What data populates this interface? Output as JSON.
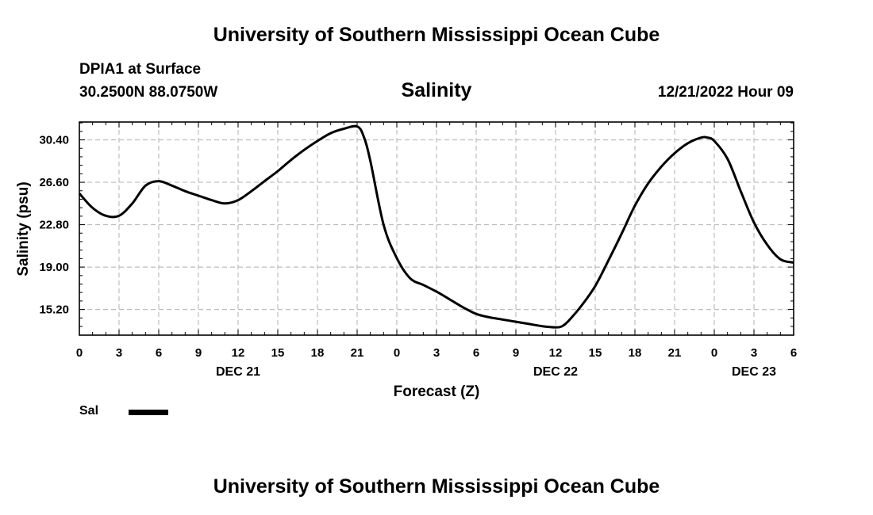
{
  "header": {
    "title": "University of Southern Mississippi Ocean Cube",
    "station": "DPIA1 at Surface",
    "coordinates": "30.2500N  88.0750W",
    "parameter": "Salinity",
    "timestamp": "12/21/2022 Hour 09"
  },
  "footer": {
    "title": "University of Southern Mississippi Ocean Cube"
  },
  "legend": {
    "series_label": "Sal",
    "color": "#000000"
  },
  "chart_data": {
    "type": "line",
    "title": "Salinity",
    "xlabel": "Forecast (Z)",
    "ylabel": "Salinity (psu)",
    "xlim": [
      0,
      54
    ],
    "ylim": [
      12.9,
      32.0
    ],
    "x_units": "hours since DEC 21 00Z",
    "x_ticks": [
      0,
      3,
      6,
      9,
      12,
      15,
      18,
      21,
      24,
      27,
      30,
      33,
      36,
      39,
      42,
      45,
      48,
      51,
      54
    ],
    "x_tick_labels": [
      "0",
      "3",
      "6",
      "9",
      "12",
      "15",
      "18",
      "21",
      "0",
      "3",
      "6",
      "9",
      "12",
      "15",
      "18",
      "21",
      "0",
      "3",
      "6"
    ],
    "date_labels": [
      {
        "x": 12,
        "label": "DEC 21"
      },
      {
        "x": 36,
        "label": "DEC 22"
      },
      {
        "x": 51,
        "label": "DEC 23"
      }
    ],
    "y_ticks": [
      15.2,
      19.0,
      22.8,
      26.6,
      30.4
    ],
    "y_tick_labels": [
      "15.20",
      "19.00",
      "22.80",
      "26.60",
      "30.40"
    ],
    "grid": true,
    "series": [
      {
        "name": "Sal",
        "x": [
          0,
          1,
          2,
          3,
          4,
          5,
          6,
          7,
          8,
          9,
          10,
          11,
          12,
          13,
          14,
          15,
          16,
          17,
          18,
          19,
          20,
          21,
          21.5,
          22,
          23,
          24,
          25,
          26,
          27,
          28,
          29,
          30,
          31,
          32,
          33,
          34,
          35,
          36,
          36.5,
          37,
          38,
          39,
          40,
          41,
          42,
          43,
          44,
          45,
          46,
          47,
          47.5,
          48,
          49,
          50,
          51,
          52,
          53,
          54
        ],
        "values": [
          25.6,
          24.3,
          23.6,
          23.6,
          24.7,
          26.3,
          26.7,
          26.3,
          25.8,
          25.4,
          25.0,
          24.7,
          25.0,
          25.8,
          26.7,
          27.6,
          28.6,
          29.5,
          30.3,
          31.0,
          31.4,
          31.6,
          30.7,
          28.5,
          22.8,
          19.8,
          18.0,
          17.4,
          16.8,
          16.1,
          15.4,
          14.8,
          14.5,
          14.3,
          14.1,
          13.9,
          13.7,
          13.6,
          13.7,
          14.2,
          15.6,
          17.3,
          19.6,
          22.0,
          24.5,
          26.5,
          28.0,
          29.2,
          30.1,
          30.6,
          30.6,
          30.3,
          28.7,
          25.8,
          23.0,
          21.0,
          19.7,
          19.4
        ]
      }
    ]
  }
}
